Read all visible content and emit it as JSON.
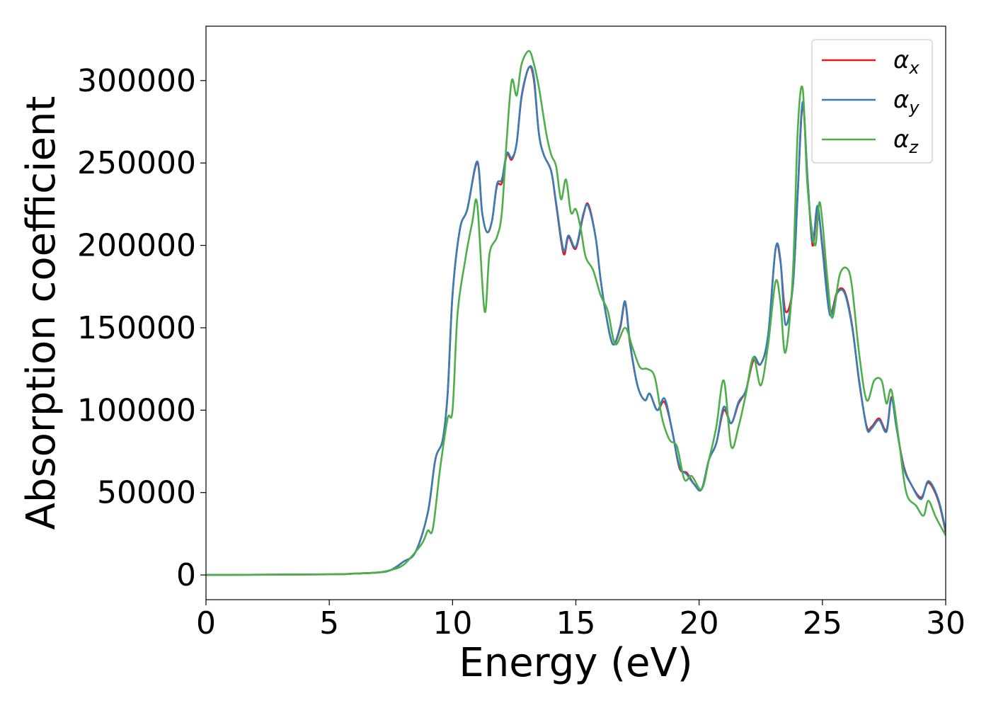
{
  "chart_data": {
    "type": "line",
    "xlabel": "Energy (eV)",
    "ylabel": "Absorption coefficient",
    "xlim": [
      0,
      30
    ],
    "ylim": [
      -15000,
      333000
    ],
    "xticks": [
      "0",
      "5",
      "10",
      "15",
      "20",
      "25",
      "30"
    ],
    "yticks": [
      "0",
      "50000",
      "100000",
      "150000",
      "200000",
      "250000",
      "300000"
    ],
    "grid": false,
    "legend_position": "top-right",
    "series": [
      {
        "name": "αx",
        "symbol": "α",
        "subscript": "x",
        "color": "#e41a1c",
        "x": [
          0,
          5,
          6,
          7,
          7.5,
          8,
          8.5,
          9,
          9.3,
          9.6,
          9.8,
          10,
          10.3,
          10.6,
          11,
          11.2,
          11.4,
          11.6,
          11.8,
          12,
          12.2,
          12.4,
          12.6,
          12.8,
          13.1,
          13.3,
          13.5,
          13.7,
          14,
          14.2,
          14.5,
          14.7,
          15,
          15.3,
          15.5,
          15.8,
          16,
          16.2,
          16.5,
          16.8,
          17,
          17.2,
          17.5,
          17.8,
          18,
          18.3,
          18.6,
          18.9,
          19.2,
          19.5,
          19.8,
          20.1,
          20.4,
          20.7,
          21,
          21.3,
          21.6,
          21.9,
          22.2,
          22.5,
          22.8,
          23.1,
          23.3,
          23.5,
          23.8,
          24,
          24.2,
          24.4,
          24.6,
          24.8,
          25,
          25.3,
          25.6,
          25.9,
          26.2,
          26.5,
          26.8,
          27,
          27.3,
          27.6,
          27.8,
          28,
          28.3,
          28.6,
          29,
          29.3,
          29.7,
          30
        ],
        "y": [
          0,
          400,
          800,
          1500,
          3000,
          8000,
          14000,
          38000,
          70000,
          82000,
          110000,
          170000,
          210000,
          222000,
          250000,
          220000,
          208000,
          215000,
          236000,
          238000,
          255000,
          252000,
          262000,
          290000,
          308000,
          300000,
          268000,
          255000,
          245000,
          225000,
          195000,
          205000,
          198000,
          218000,
          225000,
          205000,
          180000,
          160000,
          140000,
          150000,
          165000,
          140000,
          115000,
          106000,
          110000,
          100000,
          105000,
          88000,
          65000,
          62000,
          55000,
          52000,
          70000,
          80000,
          100000,
          92000,
          104000,
          112000,
          130000,
          128000,
          145000,
          198000,
          190000,
          160000,
          175000,
          232000,
          285000,
          240000,
          200000,
          222000,
          200000,
          160000,
          172000,
          172000,
          152000,
          116000,
          90000,
          90000,
          95000,
          88000,
          108000,
          90000,
          66000,
          55000,
          47000,
          56000,
          45000,
          26000
        ]
      },
      {
        "name": "αy",
        "symbol": "α",
        "subscript": "y",
        "color": "#377eb8",
        "x": [
          0,
          5,
          6,
          7,
          7.5,
          8,
          8.5,
          9,
          9.3,
          9.6,
          9.8,
          10,
          10.3,
          10.6,
          11,
          11.2,
          11.4,
          11.6,
          11.8,
          12,
          12.2,
          12.4,
          12.6,
          12.8,
          13.1,
          13.3,
          13.5,
          13.7,
          14,
          14.2,
          14.5,
          14.7,
          15,
          15.3,
          15.5,
          15.8,
          16,
          16.2,
          16.5,
          16.8,
          17,
          17.2,
          17.5,
          17.8,
          18,
          18.3,
          18.6,
          18.9,
          19.2,
          19.5,
          19.8,
          20.1,
          20.4,
          20.7,
          21,
          21.3,
          21.6,
          21.9,
          22.2,
          22.5,
          22.8,
          23.1,
          23.3,
          23.5,
          23.8,
          24,
          24.2,
          24.4,
          24.6,
          24.8,
          25,
          25.3,
          25.6,
          25.9,
          26.2,
          26.5,
          26.8,
          27,
          27.3,
          27.6,
          27.8,
          28,
          28.3,
          28.6,
          29,
          29.3,
          29.7,
          30
        ],
        "y": [
          0,
          400,
          800,
          1500,
          3000,
          8000,
          14000,
          38000,
          70000,
          82000,
          110000,
          170000,
          210000,
          222000,
          251000,
          220000,
          208000,
          215000,
          237000,
          240000,
          256000,
          253000,
          262000,
          291000,
          308000,
          302000,
          268000,
          255000,
          245000,
          226000,
          197000,
          206000,
          199000,
          219000,
          224000,
          205000,
          180000,
          160000,
          140000,
          151000,
          166000,
          141000,
          115000,
          106000,
          110000,
          100000,
          107000,
          88000,
          66000,
          61000,
          55000,
          52000,
          70000,
          80000,
          102000,
          92000,
          105000,
          112000,
          132000,
          128000,
          146000,
          198000,
          191000,
          152000,
          175000,
          232000,
          287000,
          240000,
          202000,
          224000,
          198000,
          158000,
          171000,
          171000,
          151000,
          117000,
          89000,
          89000,
          94000,
          87000,
          107000,
          90000,
          65000,
          55000,
          46000,
          57000,
          46000,
          27000
        ]
      },
      {
        "name": "αz",
        "symbol": "α",
        "subscript": "z",
        "color": "#4daf4a",
        "x": [
          0,
          5,
          6,
          7,
          7.5,
          8,
          8.5,
          8.8,
          9,
          9.2,
          9.5,
          9.8,
          10,
          10.2,
          10.5,
          10.8,
          11,
          11.3,
          11.5,
          11.8,
          12,
          12.2,
          12.4,
          12.6,
          12.8,
          13.1,
          13.3,
          13.5,
          13.8,
          14,
          14.2,
          14.4,
          14.6,
          14.8,
          15,
          15.2,
          15.4,
          15.7,
          16,
          16.3,
          16.6,
          17,
          17.3,
          17.6,
          17.9,
          18.2,
          18.5,
          18.8,
          19.1,
          19.4,
          19.7,
          20.1,
          20.4,
          20.7,
          21,
          21.3,
          21.6,
          21.9,
          22.2,
          22.5,
          22.8,
          23.1,
          23.3,
          23.5,
          23.8,
          24,
          24.2,
          24.4,
          24.7,
          24.9,
          25.2,
          25.4,
          25.7,
          26,
          26.2,
          26.5,
          26.8,
          27.1,
          27.4,
          27.6,
          27.8,
          28.1,
          28.4,
          28.8,
          29.1,
          29.3,
          29.6,
          30
        ],
        "y": [
          0,
          400,
          800,
          1500,
          3000,
          6000,
          14000,
          20000,
          27000,
          28000,
          65000,
          95000,
          100000,
          158000,
          190000,
          214000,
          225000,
          160000,
          195000,
          205000,
          220000,
          265000,
          300000,
          291000,
          310000,
          318000,
          310000,
          296000,
          268000,
          255000,
          248000,
          228000,
          240000,
          220000,
          222000,
          210000,
          193000,
          185000,
          170000,
          160000,
          140000,
          150000,
          138000,
          126000,
          125000,
          120000,
          95000,
          82000,
          78000,
          58000,
          60000,
          52000,
          70000,
          90000,
          118000,
          78000,
          90000,
          110000,
          132000,
          115000,
          140000,
          178000,
          165000,
          135000,
          182000,
          270000,
          295000,
          235000,
          200000,
          226000,
          180000,
          156000,
          182000,
          186000,
          175000,
          133000,
          106000,
          118000,
          118000,
          104000,
          112000,
          82000,
          50000,
          42000,
          36000,
          45000,
          35000,
          24000
        ]
      }
    ]
  }
}
